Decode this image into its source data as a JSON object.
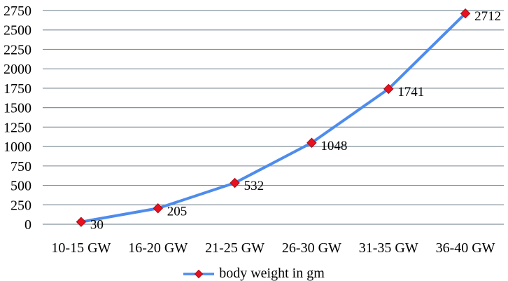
{
  "chart_data": {
    "type": "line",
    "title": "",
    "xlabel": "",
    "ylabel": "",
    "categories": [
      "10-15 GW",
      "16-20 GW",
      "21-25 GW",
      "26-30 GW",
      "31-35 GW",
      "36-40 GW"
    ],
    "series": [
      {
        "name": "body weight in gm",
        "values": [
          30,
          205,
          532,
          1048,
          1741,
          2712
        ],
        "data_labels": [
          "30",
          "205",
          "532",
          "1048",
          "1741",
          "2712"
        ],
        "line_color": "#4e8cec",
        "marker": "diamond",
        "marker_color": "#e8111f",
        "marker_edge_color": "#a50d14"
      }
    ],
    "ylim": [
      0,
      2750
    ],
    "ytick_step": 250,
    "yticks": [
      "0",
      "250",
      "500",
      "750",
      "1000",
      "1250",
      "1500",
      "1750",
      "2000",
      "2250",
      "2500",
      "2750"
    ],
    "grid": "horizontal-only",
    "gridline_color": "#84929c",
    "axis_lines": "none",
    "legend_position": "bottom-center",
    "text_color": "#000000",
    "background_color": "#ffffff"
  }
}
